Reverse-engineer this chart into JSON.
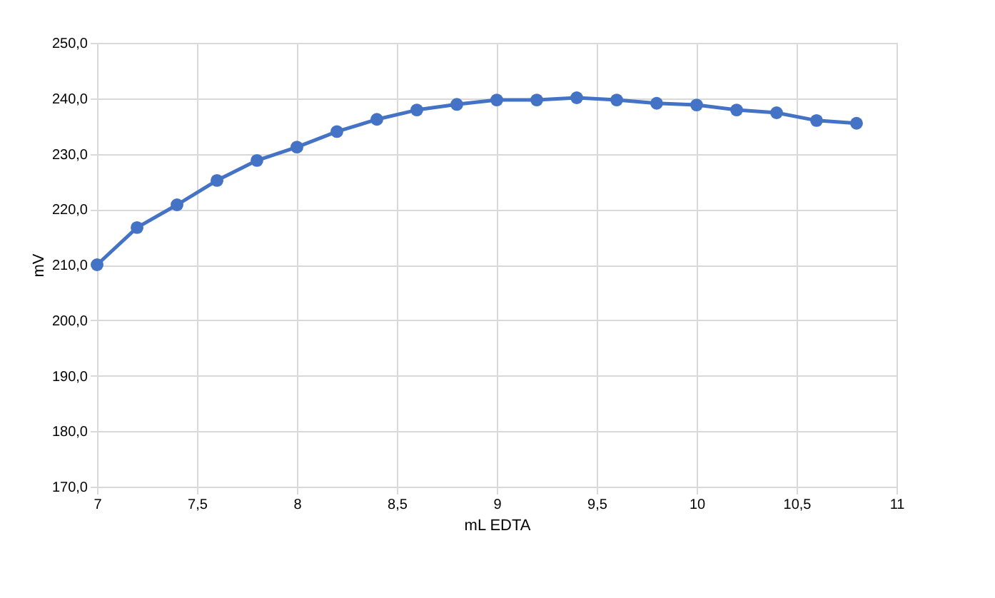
{
  "chart_data": {
    "type": "line",
    "xlabel": "mL EDTA",
    "ylabel": "mV",
    "x": [
      7,
      7.2,
      7.4,
      7.6,
      7.8,
      8,
      8.2,
      8.4,
      8.6,
      8.8,
      9,
      9.2,
      9.4,
      9.6,
      9.8,
      10,
      10.2,
      10.4,
      10.6,
      10.8
    ],
    "series": [
      {
        "color": "#4472c4",
        "values": [
          210.0,
          216.7,
          220.8,
          225.2,
          228.8,
          231.2,
          234.0,
          236.2,
          237.9,
          238.9,
          239.7,
          239.7,
          240.1,
          239.7,
          239.1,
          238.8,
          237.9,
          237.4,
          236.0,
          235.5
        ]
      }
    ],
    "xlim": [
      7,
      11
    ],
    "xticks": [
      7,
      {
        "value": 7.5,
        "label": "7,5"
      },
      8,
      {
        "value": 8.5,
        "label": "8,5"
      },
      9,
      {
        "value": 9.5,
        "label": "9,5"
      },
      10,
      {
        "value": 10.5,
        "label": "10,5"
      },
      11
    ],
    "ylim": [
      170,
      250
    ],
    "yticks": [
      {
        "value": 170,
        "label": "170,0"
      },
      {
        "value": 180,
        "label": "180,0"
      },
      {
        "value": 190,
        "label": "190,0"
      },
      {
        "value": 200,
        "label": "200,0"
      },
      {
        "value": 210,
        "label": "210,0"
      },
      {
        "value": 220,
        "label": "220,0"
      },
      {
        "value": 230,
        "label": "230,0"
      },
      {
        "value": 240,
        "label": "240,0"
      },
      {
        "value": 250,
        "label": "250,0"
      }
    ],
    "grid": true,
    "marker": "circle",
    "line_style": "solid"
  }
}
